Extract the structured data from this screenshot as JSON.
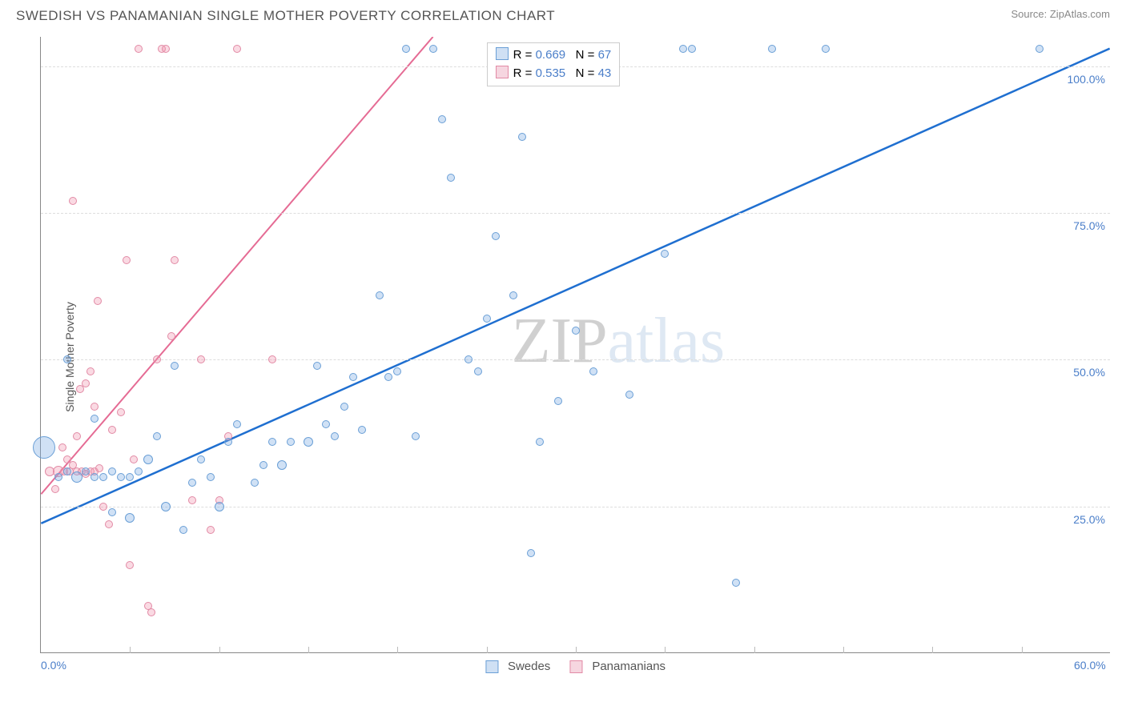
{
  "title": "SWEDISH VS PANAMANIAN SINGLE MOTHER POVERTY CORRELATION CHART",
  "source_prefix": "Source: ",
  "source_link": "ZipAtlas.com",
  "y_axis_label": "Single Mother Poverty",
  "watermark_zip": "ZIP",
  "watermark_atlas": "atlas",
  "chart": {
    "type": "scatter",
    "xlim": [
      0,
      60
    ],
    "ylim": [
      0,
      105
    ],
    "x_ticks": [
      0,
      60
    ],
    "x_tick_labels": [
      "0.0%",
      "60.0%"
    ],
    "x_minor_ticks": [
      5,
      10,
      15,
      20,
      25,
      30,
      35,
      40,
      45,
      50,
      55
    ],
    "y_ticks": [
      25,
      50,
      75,
      100
    ],
    "y_tick_labels": [
      "25.0%",
      "50.0%",
      "75.0%",
      "100.0%"
    ],
    "background_color": "#ffffff",
    "grid_color": "#dddddd",
    "axis_color": "#888888",
    "tick_label_color": "#4a7ec9",
    "series": {
      "swedes": {
        "label": "Swedes",
        "fill": "rgba(120,170,225,0.35)",
        "stroke": "#6a9fd6",
        "trend_color": "#1f6fd0",
        "trend_width": 2.5,
        "trend_p1": [
          0,
          22
        ],
        "trend_p2": [
          60,
          103
        ],
        "legend_swatch_fill": "#cfe0f4",
        "legend_swatch_border": "#6a9fd6",
        "R": "0.669",
        "N": "67",
        "points": [
          [
            0.2,
            35,
            28
          ],
          [
            1,
            30,
            10
          ],
          [
            1.5,
            31,
            10
          ],
          [
            2,
            30,
            14
          ],
          [
            2.5,
            31,
            10
          ],
          [
            3,
            30,
            10
          ],
          [
            3.5,
            30,
            10
          ],
          [
            4,
            31,
            10
          ],
          [
            4.5,
            30,
            10
          ],
          [
            5,
            30,
            10
          ],
          [
            5.5,
            31,
            10
          ],
          [
            1.5,
            50,
            10
          ],
          [
            3,
            40,
            10
          ],
          [
            4,
            24,
            10
          ],
          [
            5,
            23,
            12
          ],
          [
            6,
            33,
            12
          ],
          [
            6.5,
            37,
            10
          ],
          [
            7,
            25,
            12
          ],
          [
            7.5,
            49,
            10
          ],
          [
            8,
            21,
            10
          ],
          [
            8.5,
            29,
            10
          ],
          [
            9,
            33,
            10
          ],
          [
            9.5,
            30,
            10
          ],
          [
            10,
            25,
            12
          ],
          [
            10.5,
            36,
            10
          ],
          [
            11,
            39,
            10
          ],
          [
            12,
            29,
            10
          ],
          [
            12.5,
            32,
            10
          ],
          [
            13,
            36,
            10
          ],
          [
            13.5,
            32,
            12
          ],
          [
            14,
            36,
            10
          ],
          [
            15,
            36,
            12
          ],
          [
            15.5,
            49,
            10
          ],
          [
            16,
            39,
            10
          ],
          [
            16.5,
            37,
            10
          ],
          [
            17,
            42,
            10
          ],
          [
            17.5,
            47,
            10
          ],
          [
            18,
            38,
            10
          ],
          [
            19,
            61,
            10
          ],
          [
            19.5,
            47,
            10
          ],
          [
            20,
            48,
            10
          ],
          [
            20.5,
            103,
            10
          ],
          [
            21,
            37,
            10
          ],
          [
            22,
            103,
            10
          ],
          [
            22.5,
            91,
            10
          ],
          [
            23,
            81,
            10
          ],
          [
            24,
            50,
            10
          ],
          [
            24.5,
            48,
            10
          ],
          [
            25,
            57,
            10
          ],
          [
            25.5,
            71,
            10
          ],
          [
            26,
            103,
            10
          ],
          [
            26.5,
            61,
            10
          ],
          [
            27,
            88,
            10
          ],
          [
            27.5,
            17,
            10
          ],
          [
            28,
            36,
            10
          ],
          [
            28.5,
            103,
            10
          ],
          [
            29,
            43,
            10
          ],
          [
            30,
            55,
            10
          ],
          [
            31,
            48,
            10
          ],
          [
            33,
            44,
            10
          ],
          [
            35,
            68,
            10
          ],
          [
            36,
            103,
            10
          ],
          [
            36.5,
            103,
            10
          ],
          [
            39,
            12,
            10
          ],
          [
            41,
            103,
            10
          ],
          [
            44,
            103,
            10
          ],
          [
            56,
            103,
            10
          ]
        ]
      },
      "panamanians": {
        "label": "Panamanians",
        "fill": "rgba(240,150,175,0.35)",
        "stroke": "#e28aa5",
        "trend_color": "#e56b94",
        "trend_width": 2,
        "trend_p1": [
          0,
          27
        ],
        "trend_p2": [
          22,
          105
        ],
        "legend_swatch_fill": "#f6d6e0",
        "legend_swatch_border": "#e28aa5",
        "R": "0.535",
        "N": "43",
        "points": [
          [
            0.5,
            31,
            12
          ],
          [
            1,
            31,
            14
          ],
          [
            1.3,
            31,
            10
          ],
          [
            1.6,
            31,
            10
          ],
          [
            1.8,
            32,
            10
          ],
          [
            2,
            31,
            10
          ],
          [
            2.3,
            31,
            10
          ],
          [
            2.5,
            30.5,
            10
          ],
          [
            2.8,
            31,
            10
          ],
          [
            3,
            31,
            10
          ],
          [
            3.3,
            31.5,
            10
          ],
          [
            0.8,
            28,
            10
          ],
          [
            1.2,
            35,
            10
          ],
          [
            1.5,
            33,
            10
          ],
          [
            1.8,
            77,
            10
          ],
          [
            2,
            37,
            10
          ],
          [
            2.2,
            45,
            10
          ],
          [
            2.5,
            46,
            10
          ],
          [
            2.8,
            48,
            10
          ],
          [
            3,
            42,
            10
          ],
          [
            3.2,
            60,
            10
          ],
          [
            3.5,
            25,
            10
          ],
          [
            3.8,
            22,
            10
          ],
          [
            4,
            38,
            10
          ],
          [
            4.5,
            41,
            10
          ],
          [
            4.8,
            67,
            10
          ],
          [
            5,
            15,
            10
          ],
          [
            5.2,
            33,
            10
          ],
          [
            5.5,
            103,
            10
          ],
          [
            6,
            8,
            10
          ],
          [
            6.2,
            7,
            10
          ],
          [
            6.5,
            50,
            10
          ],
          [
            6.8,
            103,
            10
          ],
          [
            7,
            103,
            10
          ],
          [
            7.3,
            54,
            10
          ],
          [
            7.5,
            67,
            10
          ],
          [
            8.5,
            26,
            10
          ],
          [
            9,
            50,
            10
          ],
          [
            9.5,
            21,
            10
          ],
          [
            10,
            26,
            10
          ],
          [
            10.5,
            37,
            10
          ],
          [
            11,
            103,
            10
          ],
          [
            13,
            50,
            10
          ]
        ]
      }
    }
  },
  "legend_top": {
    "R_label": "R =",
    "N_label": "N ="
  }
}
